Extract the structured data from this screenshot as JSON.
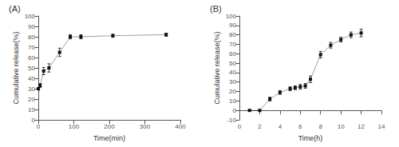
{
  "chart_data": [
    {
      "type": "line",
      "title": "(A)",
      "x": [
        0,
        5,
        15,
        30,
        60,
        90,
        120,
        210,
        360
      ],
      "values": [
        30,
        33,
        47,
        50,
        65,
        80,
        80,
        81,
        82
      ],
      "yerr": [
        1.5,
        2.0,
        3.5,
        4.0,
        4.0,
        2.0,
        2.0,
        1.5,
        1.5
      ],
      "xlabel": "Time(min)",
      "ylabel": "Cumulative release(%)",
      "xlim": [
        0,
        400
      ],
      "ylim": [
        0,
        100
      ],
      "xticks": [
        0,
        100,
        200,
        300,
        400
      ],
      "yticks": [
        0,
        10,
        20,
        30,
        40,
        50,
        60,
        70,
        80,
        90,
        100
      ],
      "color": "#111111",
      "marker": "square",
      "line_style": "solid",
      "grid": false
    },
    {
      "type": "line",
      "title": "(B)",
      "x": [
        1,
        2,
        3,
        4,
        5,
        5.5,
        6,
        6.5,
        7,
        8,
        9,
        10,
        11,
        12
      ],
      "values": [
        0,
        0,
        12,
        19,
        23,
        24,
        25,
        26,
        33,
        59,
        69,
        75,
        80,
        82
      ],
      "yerr": [
        0.5,
        0.5,
        2.0,
        2.0,
        2.0,
        2.0,
        2.5,
        2.5,
        3.5,
        3.5,
        3.0,
        2.5,
        3.0,
        4.0
      ],
      "xlabel": "Time(h)",
      "ylabel": "Cumulative release(%)",
      "xlim": [
        0,
        14
      ],
      "ylim": [
        -10,
        100
      ],
      "xticks": [
        0,
        2,
        4,
        6,
        8,
        10,
        12,
        14
      ],
      "yticks": [
        -10,
        0,
        10,
        20,
        30,
        40,
        50,
        60,
        70,
        80,
        90,
        100
      ],
      "color": "#111111",
      "marker": "square",
      "line_style": "solid",
      "grid": false
    }
  ]
}
